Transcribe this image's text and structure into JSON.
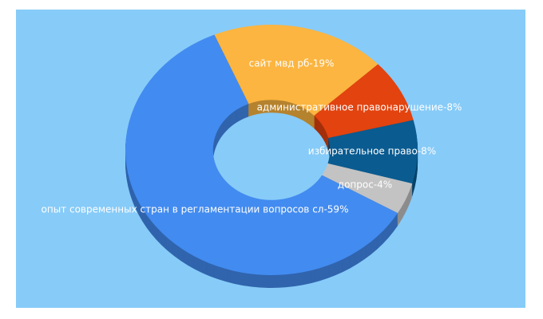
{
  "chart_data": {
    "type": "donut3d",
    "values": [
      19,
      8,
      8,
      4,
      59
    ],
    "value_labels": [
      "сайт мвд рб-19%",
      "административное правонарушение-8%",
      "избирательное право-8%",
      "допрос-4%",
      "опыт современных стран в регламентации вопросов сл-59%"
    ],
    "colors": [
      "#fbb540",
      "#e2430f",
      "#0a5b90",
      "#c3c3c3",
      "#428bf0"
    ]
  }
}
